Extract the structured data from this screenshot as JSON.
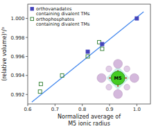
{
  "chart_data": {
    "type": "scatter",
    "title": "",
    "xlabel": "Normalized average of\nM5 ionic radius",
    "ylabel": "(relative volume)¹/³",
    "xlim": [
      0.6,
      1.05
    ],
    "ylim": [
      0.991,
      1.0015
    ],
    "xticks": [
      0.6,
      0.7,
      0.8,
      0.9,
      {
        "value": 1.0,
        "label": "1.0"
      }
    ],
    "yticks": [
      0.992,
      0.994,
      0.996,
      0.998,
      {
        "value": 1.0,
        "label": "1.000"
      }
    ],
    "series": [
      {
        "name": "orthovanadates\ncontaining divalent TMs",
        "type": "scatter",
        "marker": "square",
        "color": "#4444bb",
        "x": [
          0.82,
          0.873,
          1.0
        ],
        "values": [
          0.9965,
          0.9973,
          1.0
        ]
      },
      {
        "name": "orthophosphates\ncontaining divalent TMs",
        "type": "scatter",
        "marker": "open-square",
        "color": "#2a7a2a",
        "x": [
          0.645,
          0.648,
          0.726,
          0.82,
          0.862,
          0.873
        ],
        "values": [
          0.9923,
          0.9931,
          0.994,
          0.996,
          0.9975,
          0.9968
        ]
      },
      {
        "type": "line",
        "color": "#4488ee",
        "x": [
          0.615,
          1.025
        ],
        "values": [
          0.9912,
          1.0007
        ]
      }
    ],
    "legend": "upper left",
    "grid": false,
    "annotations": [
      "M5"
    ]
  }
}
